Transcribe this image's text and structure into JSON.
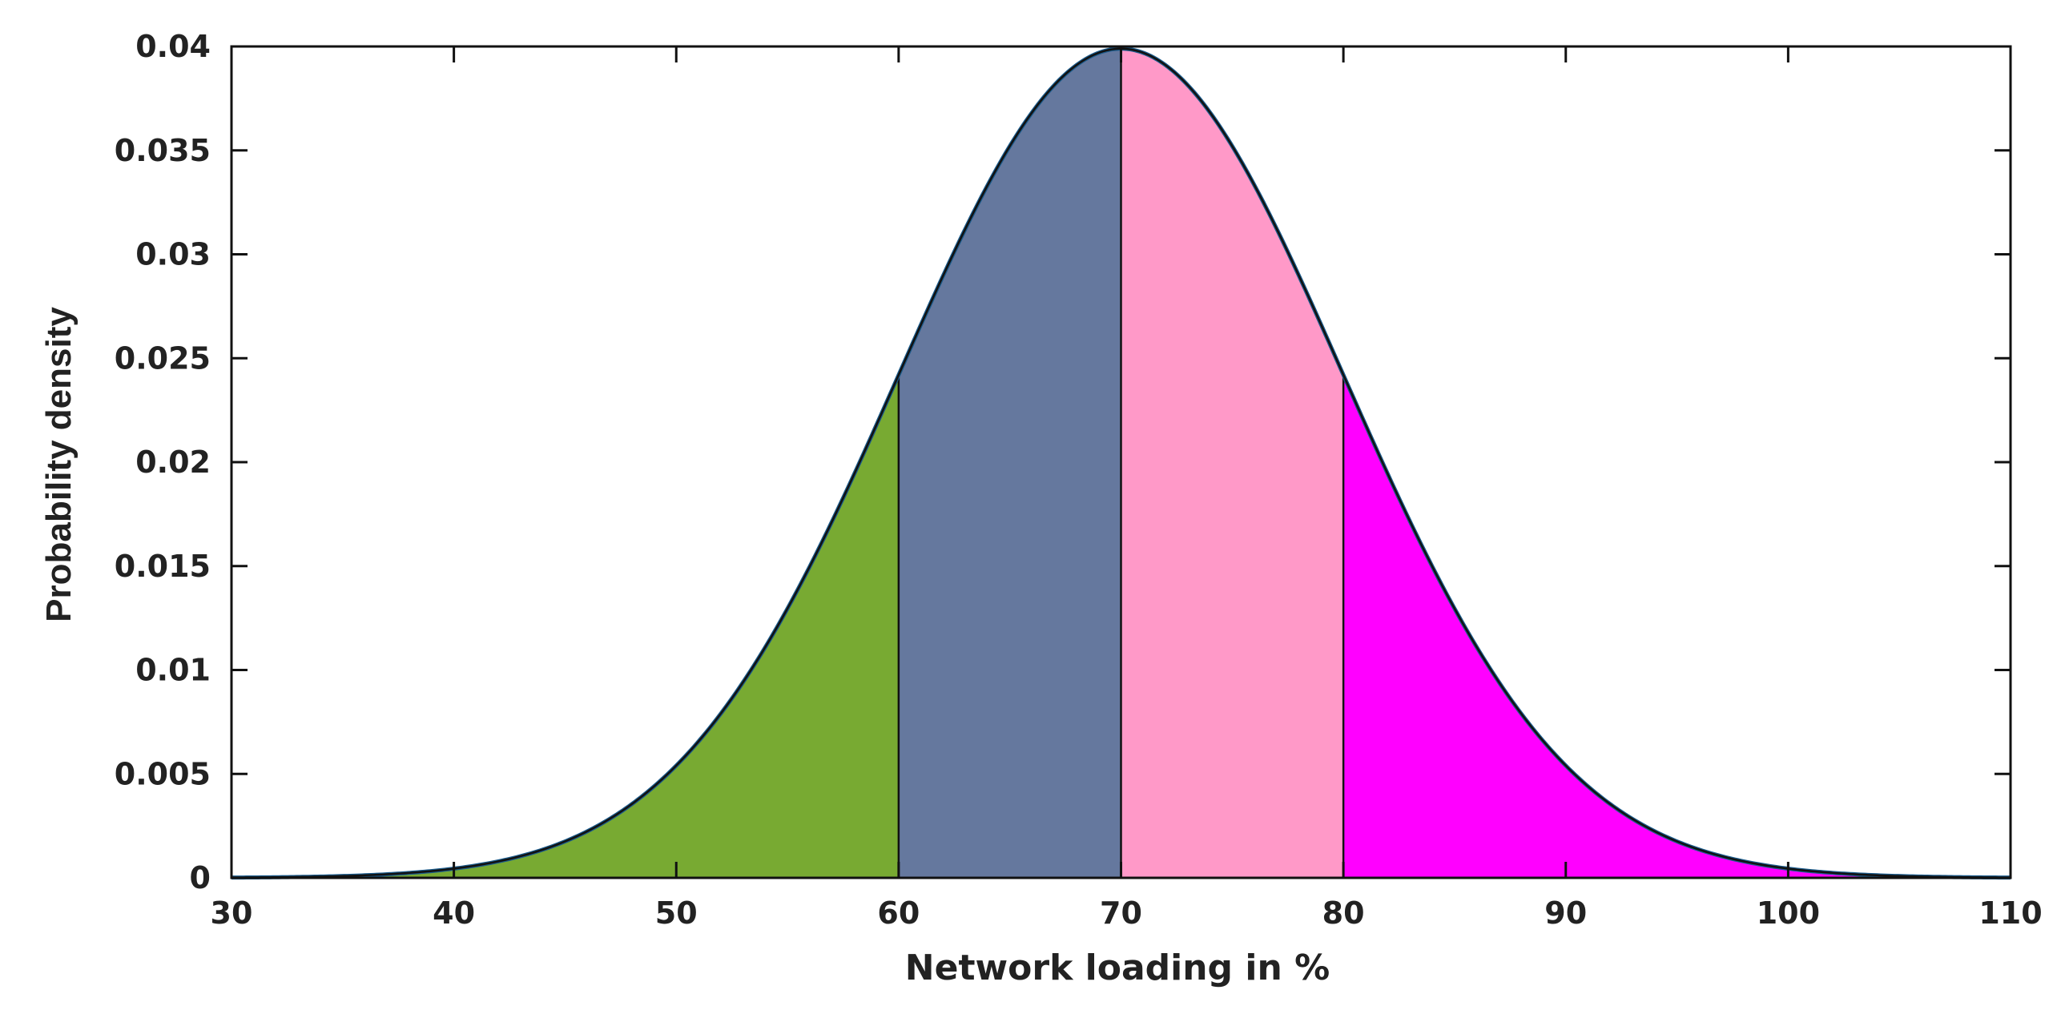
{
  "chart_data": {
    "type": "area",
    "title": "",
    "xlabel": "Network loading in %",
    "ylabel": "Probability density",
    "xlim": [
      30,
      110
    ],
    "ylim": [
      0,
      0.04
    ],
    "x_ticks": [
      "30",
      "40",
      "50",
      "60",
      "70",
      "80",
      "90",
      "100",
      "110"
    ],
    "y_ticks": [
      "0",
      "0.005",
      "0.01",
      "0.015",
      "0.02",
      "0.025",
      "0.03",
      "0.035",
      "0.04"
    ],
    "grid": false,
    "legend": "none",
    "distribution": {
      "kind": "normal",
      "mean": 70,
      "std": 10,
      "curve_color": "#1a5a8a"
    },
    "regions": [
      {
        "x_start": 30,
        "x_end": 60,
        "color": "#78aa32"
      },
      {
        "x_start": 60,
        "x_end": 70,
        "color": "#65789e"
      },
      {
        "x_start": 70,
        "x_end": 80,
        "color": "#ff99c8"
      },
      {
        "x_start": 80,
        "x_end": 110,
        "color": "#ff00ff"
      }
    ]
  }
}
